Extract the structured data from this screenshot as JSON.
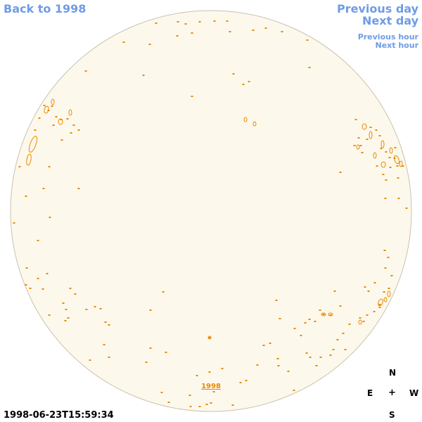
{
  "nav": {
    "back_label": "Back to 1998",
    "prev_day_label": "Previous day",
    "next_day_label": "Next day",
    "prev_hour_label": "Previous hour",
    "next_hour_label": "Next hour"
  },
  "timestamp": "1998-06-23T15:59:34",
  "disk_year_label": "1998",
  "compass": {
    "n": "N",
    "e": "E",
    "center": "+",
    "w": "W",
    "s": "S"
  },
  "colors": {
    "link": "#6f9be6",
    "disk_fill": "#fdf8ec",
    "disk_stroke": "#c9c2b0",
    "feature": "#e98a00"
  }
}
